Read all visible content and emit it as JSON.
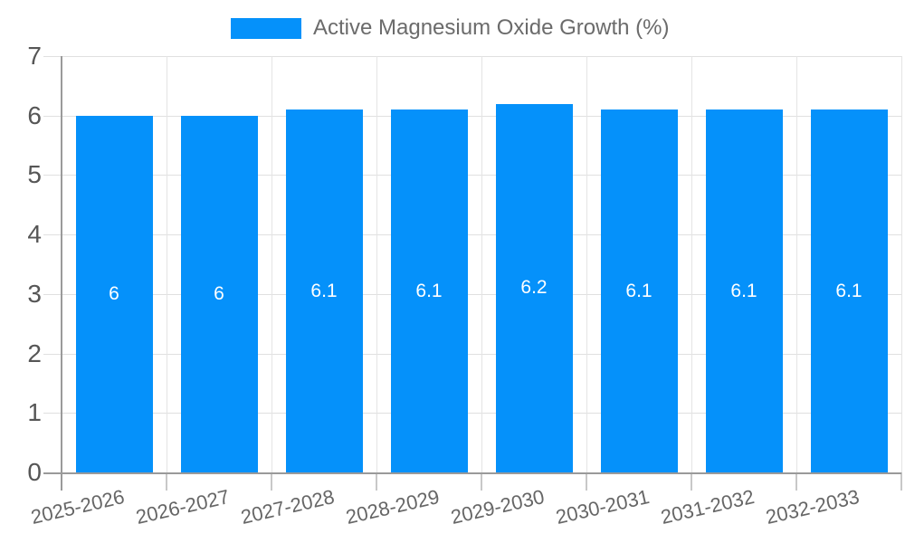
{
  "legend": {
    "label": "Active Magnesium Oxide Growth (%)"
  },
  "colors": {
    "bar": "#0591fa",
    "grid": "#e0e0e0",
    "axis": "#9a9a9a",
    "tick_stub": "#c8c8c8",
    "axis_text": "#666666",
    "bar_label_text": "#ffffff"
  },
  "chart_data": {
    "type": "bar",
    "title": "",
    "xlabel": "",
    "ylabel": "",
    "categories": [
      "2025-2026",
      "2026-2027",
      "2027-2028",
      "2028-2029",
      "2029-2030",
      "2030-2031",
      "2031-2032",
      "2032-2033"
    ],
    "series": [
      {
        "name": "Active Magnesium Oxide Growth (%)",
        "values": [
          6,
          6,
          6.1,
          6.1,
          6.2,
          6.1,
          6.1,
          6.1
        ],
        "color": "#0591fa"
      }
    ],
    "data_labels": [
      "6",
      "6",
      "6.1",
      "6.1",
      "6.2",
      "6.1",
      "6.1",
      "6.1"
    ],
    "ylim": [
      0,
      7
    ],
    "yticks": [
      0,
      1,
      2,
      3,
      4,
      5,
      6,
      7
    ],
    "grid": true,
    "legend_position": "top",
    "xtick_rotation_deg": -13
  }
}
